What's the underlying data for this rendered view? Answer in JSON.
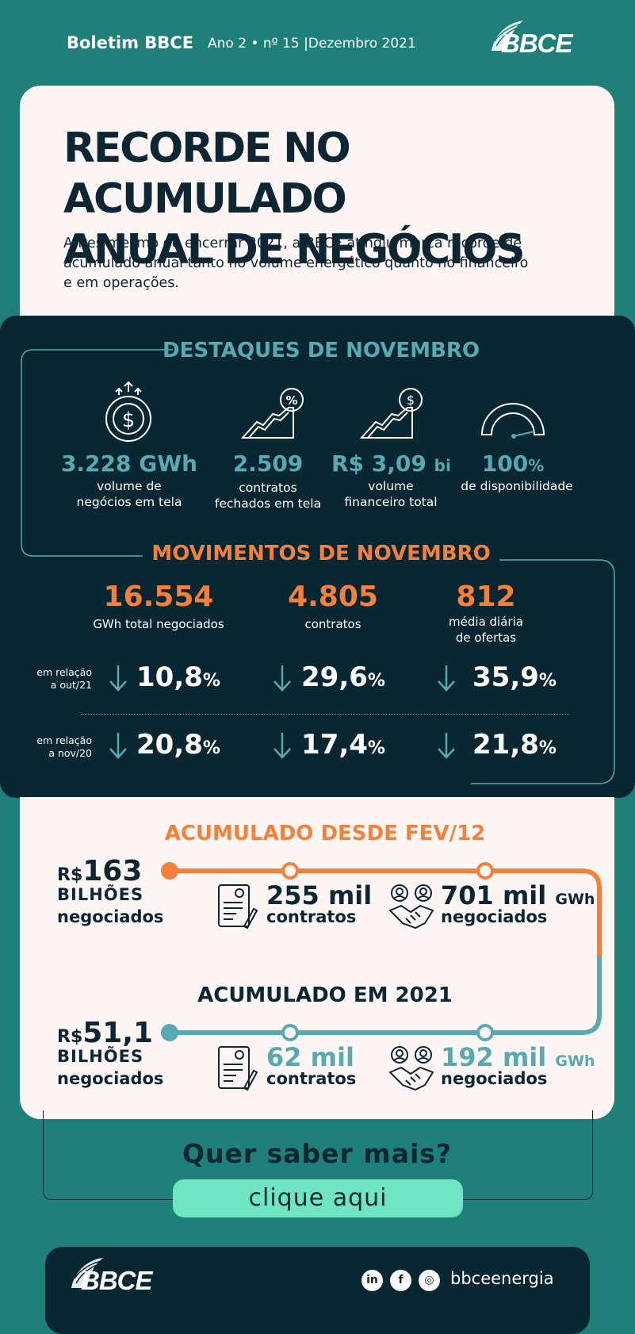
{
  "header": {
    "title": "Boletim BBCE",
    "issue": "Ano 2 • nº 15 |Dezembro 2021",
    "logo_text": "BBCE"
  },
  "hero": {
    "title_line1": "RECORDE NO ACUMULADO",
    "title_line2": "ANUAL DE NEGÓCIOS",
    "text": "Antes mesmo de encerrar 2021, a BBCE atingiu marca recorde de acumulado anual tanto no volume energético quanto no financeiro e em operações."
  },
  "highlights": {
    "title": "DESTAQUES DE NOVEMBRO",
    "items": [
      {
        "icon": "money-growth-icon",
        "value": "3.228 GWh",
        "unit": "",
        "label1": "volume de",
        "label2": "negócios em tela"
      },
      {
        "icon": "chart-percent-icon",
        "value": "2.509",
        "unit": "",
        "label1": "contratos",
        "label2": "fechados em tela"
      },
      {
        "icon": "chart-dollar-icon",
        "value": "R$ 3,09",
        "unit": "bi",
        "label1": "volume",
        "label2": "financeiro total"
      },
      {
        "icon": "gauge-icon",
        "value": "100",
        "unit": "%",
        "label1": "de disponibilidade",
        "label2": ""
      }
    ]
  },
  "movements": {
    "title": "MOVIMENTOS DE NOVEMBRO",
    "items": [
      {
        "value": "16.554",
        "label1": "GWh total negociados",
        "label2": ""
      },
      {
        "value": "4.805",
        "label1": "contratos",
        "label2": ""
      },
      {
        "value": "812",
        "label1": "média diária",
        "label2": "de ofertas"
      }
    ],
    "comparisons": [
      {
        "label1": "em relação",
        "label2": "a out/21",
        "values": [
          "10,8",
          "29,6",
          "35,9"
        ]
      },
      {
        "label1": "em relação",
        "label2": "a nov/20",
        "values": [
          "20,8",
          "17,4",
          "21,8"
        ]
      }
    ],
    "pct_unit": "%"
  },
  "accumulated": {
    "since": {
      "title": "ACUMULADO DESDE FEV/12",
      "currency": "R$",
      "amount": "163",
      "unit_line": "BILHÕES",
      "neg": "negociados",
      "contracts_value": "255 mil",
      "contracts_label": "contratos",
      "gwh_value": "701 mil",
      "gwh_unit": "GWh",
      "gwh_label": "negociados"
    },
    "year": {
      "title": "ACUMULADO EM 2021",
      "currency": "R$",
      "amount": "51,1",
      "unit_line": "BILHÕES",
      "neg": "negociados",
      "contracts_value": "62 mil",
      "contracts_label": "contratos",
      "gwh_value": "192 mil",
      "gwh_unit": "GWh",
      "gwh_label": "negociados"
    }
  },
  "cta": {
    "question": "Quer saber mais?",
    "button": "clique aqui"
  },
  "footer": {
    "logo_text": "BBCE",
    "handle": "bbceenergia",
    "social": [
      "in",
      "f",
      "◎"
    ]
  },
  "colors": {
    "teal": "#58aab1",
    "orange": "#f5803a",
    "dark": "#082733",
    "green_bg": "#1f7f79",
    "mint": "#6fe6c1",
    "cream": "#fdf6f4"
  }
}
